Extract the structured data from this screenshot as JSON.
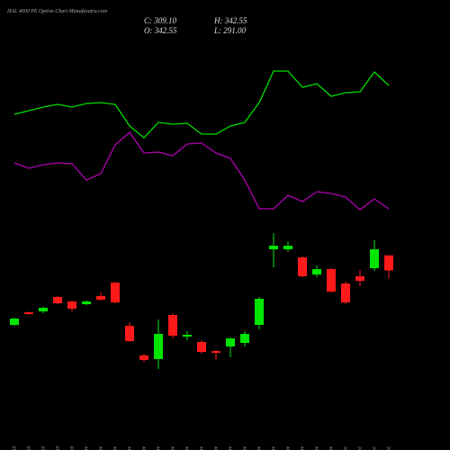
{
  "chart_data": {
    "type": "candlestick",
    "title": "HAL 4600 PE Option Chart Munafasutra.com",
    "info": [
      "C: 309.10",
      "H: 342.55",
      "O: 342.55",
      "L: 291.00"
    ],
    "categories": [
      "27 Oct",
      "28 Oct",
      "29 Oct",
      "30 Oct",
      "31 Oct",
      "03 Nov",
      "04 Nov",
      "06 Nov",
      "10 Nov",
      "11 Nov",
      "12 Nov",
      "13 Nov",
      "14 Nov",
      "17 Nov",
      "18 Nov",
      "19 Nov",
      "20 Nov",
      "21 Nov",
      "24 Nov",
      "25 Nov",
      "26 Nov",
      "27 Nov",
      "28 Nov",
      "01 Dec",
      "02 Dec",
      "03 Dec",
      "04 Dec"
    ],
    "open": [
      188,
      216,
      218,
      250,
      240,
      234,
      252,
      282,
      186,
      120,
      112,
      210,
      162,
      150,
      130,
      140,
      148,
      188,
      356,
      356,
      338,
      300,
      312,
      280,
      296,
      314,
      342.55
    ],
    "high": [
      204,
      218,
      228,
      252,
      242,
      242,
      260,
      284,
      194,
      124,
      200,
      214,
      174,
      154,
      132,
      160,
      174,
      250,
      392,
      374,
      340,
      320,
      314,
      284,
      310,
      376,
      342.55
    ],
    "low": [
      186,
      210,
      214,
      234,
      218,
      232,
      242,
      236,
      150,
      106,
      90,
      158,
      154,
      124,
      110,
      116,
      140,
      178,
      316,
      350,
      294,
      294,
      260,
      234,
      274,
      308,
      291.0
    ],
    "close": [
      202,
      212,
      226,
      236,
      224,
      240,
      244,
      238,
      152,
      110,
      168,
      164,
      166,
      128,
      126,
      158,
      168,
      246,
      364,
      364,
      296,
      312,
      262,
      238,
      286,
      356,
      309.1
    ],
    "up_color": "#00e600",
    "down_color": "#ff1a1a",
    "lines": [
      {
        "color": "#00dd00",
        "values": [
          656,
          664,
          672,
          678,
          672,
          680,
          682,
          678,
          630,
          604,
          638,
          634,
          636,
          612,
          612,
          630,
          638,
          682,
          752,
          752,
          716,
          724,
          696,
          704,
          706,
          750,
          720
        ]
      },
      {
        "color": "#b000b0",
        "values": [
          548,
          536,
          544,
          548,
          546,
          510,
          524,
          588,
          616,
          570,
          572,
          564,
          590,
          592,
          570,
          558,
          510,
          446,
          446,
          476,
          462,
          484,
          480,
          472,
          444,
          468,
          446
        ]
      }
    ],
    "ylim": [
      -90,
      910
    ]
  }
}
